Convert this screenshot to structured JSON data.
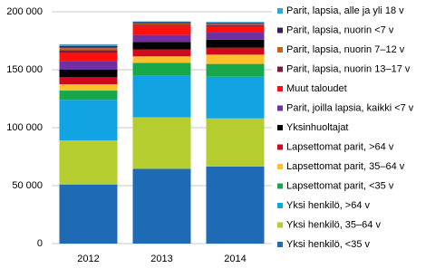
{
  "chart_data": {
    "type": "stacked-bar",
    "categories": [
      "2012",
      "2013",
      "2014"
    ],
    "ylim": [
      0,
      200000
    ],
    "yticks": [
      0,
      {
        "value": 50000,
        "label": "50 000"
      },
      {
        "value": 100000,
        "label": "100 000"
      },
      {
        "value": 150000,
        "label": "150 000"
      },
      {
        "value": 200000,
        "label": "200 000"
      }
    ],
    "grid": true,
    "legend": "right",
    "series": [
      {
        "name": "Yksi henkilö, <35 v",
        "color": "#1f6ab4",
        "values": [
          51000,
          64500,
          66500
        ]
      },
      {
        "name": "Yksi henkilö, 35–64 v",
        "color": "#b5cd2f",
        "values": [
          38000,
          44500,
          41500
        ]
      },
      {
        "name": "Yksi henkilö, >64 v",
        "color": "#12a3e3",
        "values": [
          35000,
          36000,
          36000
        ]
      },
      {
        "name": "Lapsettomat parit, <35 v",
        "color": "#18a84b",
        "values": [
          8000,
          11000,
          11000
        ]
      },
      {
        "name": "Lapsettomat parit, 35–64 v",
        "color": "#fcc12d",
        "values": [
          5500,
          5500,
          8000
        ]
      },
      {
        "name": "Lapsettomat parit,  >64 v",
        "color": "#d0091f",
        "values": [
          6000,
          6000,
          6000
        ]
      },
      {
        "name": "Yksinhuoltajat",
        "color": "#000000",
        "values": [
          6500,
          6500,
          7000
        ]
      },
      {
        "name": "Parit, joilla lapsia, kaikki  <7 v",
        "color": "#7030a0",
        "values": [
          7500,
          6000,
          6000
        ]
      },
      {
        "name": "Muut taloudet",
        "color": "#ff1010",
        "values": [
          7000,
          8000,
          5500
        ]
      },
      {
        "name": "Parit, lapsia, nuorin 13–17 v",
        "color": "#7b1c3a",
        "values": [
          2500,
          1000,
          1000
        ]
      },
      {
        "name": "Parit, lapsia, nuorin 7–12 v",
        "color": "#c0651b",
        "values": [
          2000,
          1000,
          1000
        ]
      },
      {
        "name": "Parit, lapsia, nuorin <7 v",
        "color": "#3d1a5e",
        "values": [
          1500,
          1000,
          800
        ]
      },
      {
        "name": "Parit, lapsia, alle ja yli 18 v",
        "color": "#29a8e0",
        "values": [
          1500,
          700,
          1000
        ]
      }
    ]
  }
}
